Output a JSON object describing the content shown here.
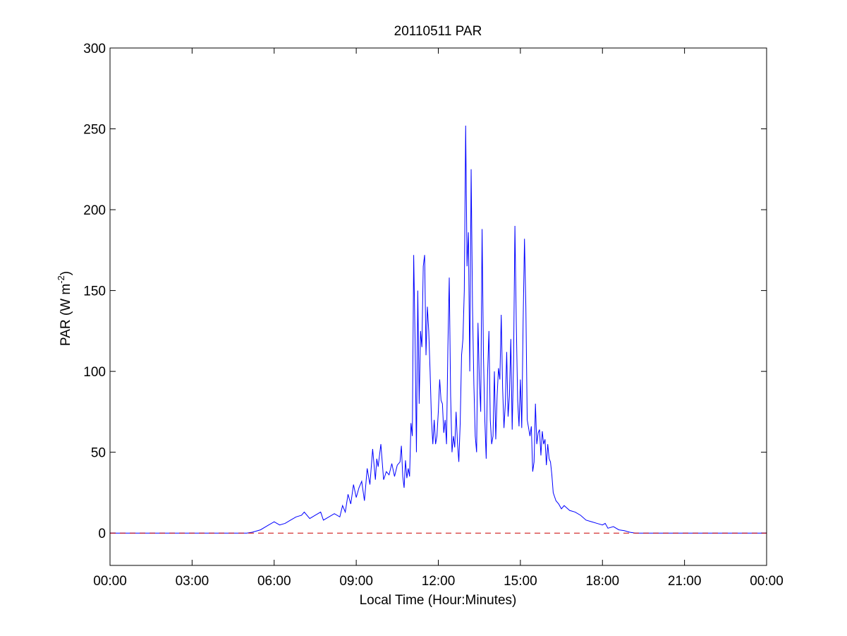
{
  "chart_data": {
    "type": "line",
    "title": "20110511 PAR",
    "xlabel": "Local Time (Hour:Minutes)",
    "ylabel_main": "PAR (W m",
    "ylabel_sup": "-2",
    "ylabel_close": ")",
    "xlim": [
      0,
      24
    ],
    "ylim": [
      -20,
      300
    ],
    "xticks": [
      {
        "value": 0,
        "label": "00:00"
      },
      {
        "value": 3,
        "label": "03:00"
      },
      {
        "value": 6,
        "label": "06:00"
      },
      {
        "value": 9,
        "label": "09:00"
      },
      {
        "value": 12,
        "label": "12:00"
      },
      {
        "value": 15,
        "label": "15:00"
      },
      {
        "value": 18,
        "label": "18:00"
      },
      {
        "value": 21,
        "label": "21:00"
      },
      {
        "value": 24,
        "label": "00:00"
      }
    ],
    "yticks": [
      {
        "value": 0,
        "label": "0"
      },
      {
        "value": 50,
        "label": "50"
      },
      {
        "value": 100,
        "label": "100"
      },
      {
        "value": 150,
        "label": "150"
      },
      {
        "value": 200,
        "label": "200"
      },
      {
        "value": 250,
        "label": "250"
      },
      {
        "value": 300,
        "label": "300"
      }
    ],
    "grid": false,
    "series": [
      {
        "color": "#0000ff",
        "line_style": "solid",
        "x_units": "hours",
        "points": [
          [
            0,
            0
          ],
          [
            5.0,
            0
          ],
          [
            5.2,
            0.5
          ],
          [
            5.5,
            2
          ],
          [
            5.8,
            5
          ],
          [
            6.0,
            7
          ],
          [
            6.2,
            5
          ],
          [
            6.4,
            6
          ],
          [
            6.6,
            8
          ],
          [
            6.8,
            10
          ],
          [
            7.0,
            11
          ],
          [
            7.1,
            13
          ],
          [
            7.3,
            9
          ],
          [
            7.5,
            11
          ],
          [
            7.7,
            13
          ],
          [
            7.8,
            8
          ],
          [
            8.0,
            10
          ],
          [
            8.2,
            12
          ],
          [
            8.4,
            10
          ],
          [
            8.5,
            17
          ],
          [
            8.6,
            13
          ],
          [
            8.7,
            24
          ],
          [
            8.8,
            18
          ],
          [
            8.9,
            30
          ],
          [
            9.0,
            22
          ],
          [
            9.1,
            28
          ],
          [
            9.2,
            32
          ],
          [
            9.3,
            20
          ],
          [
            9.4,
            40
          ],
          [
            9.5,
            30
          ],
          [
            9.6,
            52
          ],
          [
            9.7,
            33
          ],
          [
            9.75,
            46
          ],
          [
            9.8,
            41
          ],
          [
            9.9,
            55
          ],
          [
            10.0,
            33
          ],
          [
            10.1,
            38
          ],
          [
            10.2,
            36
          ],
          [
            10.3,
            43
          ],
          [
            10.4,
            35
          ],
          [
            10.5,
            42
          ],
          [
            10.6,
            44
          ],
          [
            10.65,
            54
          ],
          [
            10.7,
            35
          ],
          [
            10.75,
            28
          ],
          [
            10.8,
            45
          ],
          [
            10.85,
            34
          ],
          [
            10.9,
            40
          ],
          [
            10.95,
            35
          ],
          [
            11.0,
            68
          ],
          [
            11.05,
            60
          ],
          [
            11.1,
            172
          ],
          [
            11.15,
            120
          ],
          [
            11.2,
            50
          ],
          [
            11.25,
            150
          ],
          [
            11.3,
            80
          ],
          [
            11.35,
            125
          ],
          [
            11.4,
            115
          ],
          [
            11.45,
            165
          ],
          [
            11.5,
            172
          ],
          [
            11.55,
            110
          ],
          [
            11.6,
            140
          ],
          [
            11.65,
            125
          ],
          [
            11.7,
            100
          ],
          [
            11.75,
            70
          ],
          [
            11.8,
            55
          ],
          [
            11.85,
            70
          ],
          [
            11.9,
            55
          ],
          [
            11.95,
            60
          ],
          [
            12.0,
            75
          ],
          [
            12.05,
            95
          ],
          [
            12.1,
            82
          ],
          [
            12.15,
            80
          ],
          [
            12.2,
            62
          ],
          [
            12.25,
            70
          ],
          [
            12.3,
            55
          ],
          [
            12.35,
            115
          ],
          [
            12.4,
            158
          ],
          [
            12.45,
            85
          ],
          [
            12.5,
            50
          ],
          [
            12.55,
            60
          ],
          [
            12.6,
            53
          ],
          [
            12.65,
            75
          ],
          [
            12.7,
            56
          ],
          [
            12.75,
            44
          ],
          [
            12.8,
            68
          ],
          [
            12.85,
            110
          ],
          [
            12.9,
            120
          ],
          [
            12.95,
            150
          ],
          [
            13.0,
            252
          ],
          [
            13.05,
            165
          ],
          [
            13.1,
            186
          ],
          [
            13.15,
            100
          ],
          [
            13.2,
            225
          ],
          [
            13.25,
            140
          ],
          [
            13.3,
            92
          ],
          [
            13.35,
            60
          ],
          [
            13.4,
            50
          ],
          [
            13.45,
            130
          ],
          [
            13.5,
            95
          ],
          [
            13.55,
            75
          ],
          [
            13.6,
            188
          ],
          [
            13.65,
            110
          ],
          [
            13.7,
            70
          ],
          [
            13.75,
            46
          ],
          [
            13.8,
            98
          ],
          [
            13.85,
            125
          ],
          [
            13.9,
            70
          ],
          [
            13.95,
            55
          ],
          [
            14.0,
            60
          ],
          [
            14.05,
            100
          ],
          [
            14.1,
            58
          ],
          [
            14.15,
            85
          ],
          [
            14.2,
            102
          ],
          [
            14.25,
            95
          ],
          [
            14.3,
            135
          ],
          [
            14.35,
            90
          ],
          [
            14.4,
            65
          ],
          [
            14.45,
            80
          ],
          [
            14.5,
            112
          ],
          [
            14.55,
            72
          ],
          [
            14.6,
            85
          ],
          [
            14.65,
            120
          ],
          [
            14.7,
            64
          ],
          [
            14.75,
            105
          ],
          [
            14.8,
            190
          ],
          [
            14.85,
            130
          ],
          [
            14.9,
            82
          ],
          [
            14.95,
            66
          ],
          [
            15.0,
            95
          ],
          [
            15.05,
            65
          ],
          [
            15.1,
            130
          ],
          [
            15.15,
            182
          ],
          [
            15.2,
            140
          ],
          [
            15.25,
            70
          ],
          [
            15.3,
            65
          ],
          [
            15.35,
            60
          ],
          [
            15.4,
            66
          ],
          [
            15.45,
            38
          ],
          [
            15.5,
            44
          ],
          [
            15.55,
            80
          ],
          [
            15.6,
            55
          ],
          [
            15.65,
            62
          ],
          [
            15.7,
            64
          ],
          [
            15.75,
            48
          ],
          [
            15.8,
            63
          ],
          [
            15.85,
            55
          ],
          [
            15.9,
            58
          ],
          [
            15.95,
            42
          ],
          [
            16.0,
            55
          ],
          [
            16.05,
            46
          ],
          [
            16.1,
            44
          ],
          [
            16.15,
            36
          ],
          [
            16.2,
            25
          ],
          [
            16.3,
            20
          ],
          [
            16.4,
            18
          ],
          [
            16.5,
            15
          ],
          [
            16.6,
            17
          ],
          [
            16.8,
            14
          ],
          [
            17.0,
            13
          ],
          [
            17.2,
            11
          ],
          [
            17.4,
            8
          ],
          [
            17.6,
            7
          ],
          [
            17.8,
            6
          ],
          [
            18.0,
            5
          ],
          [
            18.1,
            6
          ],
          [
            18.2,
            3
          ],
          [
            18.4,
            4
          ],
          [
            18.6,
            2
          ],
          [
            18.8,
            1.5
          ],
          [
            19.0,
            0.5
          ],
          [
            19.2,
            0
          ],
          [
            24,
            0
          ]
        ]
      },
      {
        "color": "#cc0000",
        "line_style": "dashed",
        "points": [
          [
            0,
            0
          ],
          [
            24,
            0
          ]
        ]
      }
    ]
  }
}
